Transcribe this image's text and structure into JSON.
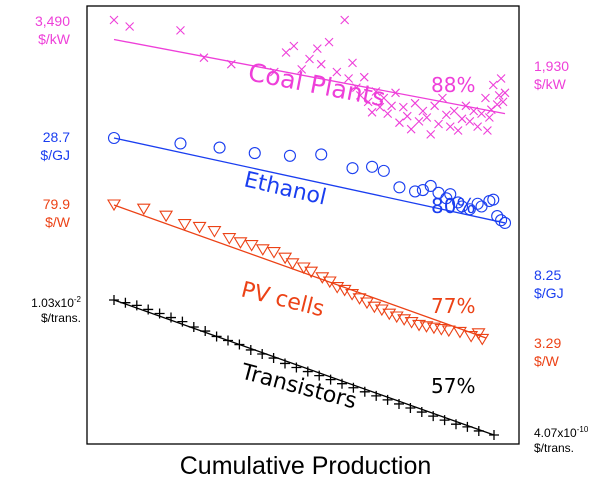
{
  "chart_data": {
    "type": "scatter",
    "title": "",
    "xlabel": "Cumulative Production",
    "ylabel": "",
    "grid": false,
    "legend": "none",
    "series": [
      {
        "name": "Coal Plants",
        "color": "#ee3fd9",
        "marker": "x",
        "learning_rate": "88%",
        "start_label": {
          "value": "3,490",
          "unit": "$/kW"
        },
        "end_label": {
          "value": "1,930",
          "unit": "$/kW"
        },
        "points": [
          [
            0.0,
            1.0
          ],
          [
            0.04,
            0.95
          ],
          [
            0.17,
            0.92
          ],
          [
            0.23,
            0.71
          ],
          [
            0.3,
            0.66
          ],
          [
            0.41,
            0.6
          ],
          [
            0.44,
            0.75
          ],
          [
            0.46,
            0.8
          ],
          [
            0.48,
            0.62
          ],
          [
            0.5,
            0.7
          ],
          [
            0.52,
            0.78
          ],
          [
            0.53,
            0.66
          ],
          [
            0.55,
            0.83
          ],
          [
            0.57,
            0.6
          ],
          [
            0.59,
            1.0
          ],
          [
            0.6,
            0.55
          ],
          [
            0.61,
            0.67
          ],
          [
            0.62,
            0.48
          ],
          [
            0.63,
            0.42
          ],
          [
            0.64,
            0.56
          ],
          [
            0.65,
            0.37
          ],
          [
            0.66,
            0.29
          ],
          [
            0.67,
            0.45
          ],
          [
            0.68,
            0.33
          ],
          [
            0.69,
            0.4
          ],
          [
            0.7,
            0.28
          ],
          [
            0.71,
            0.34
          ],
          [
            0.72,
            0.44
          ],
          [
            0.73,
            0.21
          ],
          [
            0.74,
            0.33
          ],
          [
            0.75,
            0.26
          ],
          [
            0.76,
            0.16
          ],
          [
            0.77,
            0.36
          ],
          [
            0.78,
            0.22
          ],
          [
            0.79,
            0.3
          ],
          [
            0.8,
            0.25
          ],
          [
            0.81,
            0.12
          ],
          [
            0.82,
            0.34
          ],
          [
            0.83,
            0.2
          ],
          [
            0.84,
            0.4
          ],
          [
            0.85,
            0.27
          ],
          [
            0.86,
            0.18
          ],
          [
            0.87,
            0.3
          ],
          [
            0.88,
            0.15
          ],
          [
            0.89,
            0.24
          ],
          [
            0.9,
            0.34
          ],
          [
            0.91,
            0.22
          ],
          [
            0.92,
            0.3
          ],
          [
            0.93,
            0.18
          ],
          [
            0.94,
            0.28
          ],
          [
            0.95,
            0.4
          ],
          [
            0.96,
            0.25
          ],
          [
            0.97,
            0.5
          ],
          [
            0.98,
            0.35
          ],
          [
            0.99,
            0.55
          ],
          [
            1.0,
            0.44
          ],
          [
            0.965,
            0.31
          ],
          [
            0.985,
            0.42
          ],
          [
            0.995,
            0.37
          ],
          [
            0.955,
            0.15
          ]
        ],
        "fit": [
          [
            0.0,
            0.85
          ],
          [
            1.0,
            0.28
          ]
        ]
      },
      {
        "name": "Ethanol",
        "color": "#1a3ef0",
        "marker": "o",
        "learning_rate": "80%",
        "start_label": {
          "value": "28.7",
          "unit": "$/GJ"
        },
        "end_label": {
          "value": "8.25",
          "unit": "$/GJ"
        },
        "points": [
          [
            0.0,
            1.0
          ],
          [
            0.17,
            0.96
          ],
          [
            0.27,
            0.93
          ],
          [
            0.36,
            0.89
          ],
          [
            0.45,
            0.87
          ],
          [
            0.53,
            0.88
          ],
          [
            0.61,
            0.78
          ],
          [
            0.66,
            0.79
          ],
          [
            0.69,
            0.76
          ],
          [
            0.73,
            0.64
          ],
          [
            0.77,
            0.61
          ],
          [
            0.79,
            0.62
          ],
          [
            0.81,
            0.65
          ],
          [
            0.83,
            0.6
          ],
          [
            0.85,
            0.56
          ],
          [
            0.86,
            0.59
          ],
          [
            0.88,
            0.53
          ],
          [
            0.89,
            0.5
          ],
          [
            0.91,
            0.48
          ],
          [
            0.93,
            0.52
          ],
          [
            0.94,
            0.5
          ],
          [
            0.96,
            0.54
          ],
          [
            0.97,
            0.55
          ],
          [
            0.98,
            0.43
          ],
          [
            0.99,
            0.4
          ],
          [
            1.0,
            0.38
          ]
        ],
        "fit": [
          [
            0.0,
            1.0
          ],
          [
            1.0,
            0.38
          ]
        ]
      },
      {
        "name": "PV cells",
        "color": "#ec4216",
        "marker": "v",
        "learning_rate": "77%",
        "start_label": {
          "value": "79.9",
          "unit": "$/W"
        },
        "end_label": {
          "value": "3.29",
          "unit": "$/W"
        },
        "points": [
          [
            0.0,
            1.0
          ],
          [
            0.08,
            0.97
          ],
          [
            0.14,
            0.92
          ],
          [
            0.19,
            0.86
          ],
          [
            0.23,
            0.84
          ],
          [
            0.27,
            0.81
          ],
          [
            0.31,
            0.76
          ],
          [
            0.34,
            0.73
          ],
          [
            0.37,
            0.71
          ],
          [
            0.4,
            0.68
          ],
          [
            0.43,
            0.66
          ],
          [
            0.46,
            0.62
          ],
          [
            0.48,
            0.58
          ],
          [
            0.51,
            0.55
          ],
          [
            0.53,
            0.52
          ],
          [
            0.56,
            0.48
          ],
          [
            0.58,
            0.45
          ],
          [
            0.6,
            0.41
          ],
          [
            0.62,
            0.39
          ],
          [
            0.64,
            0.36
          ],
          [
            0.66,
            0.33
          ],
          [
            0.68,
            0.3
          ],
          [
            0.7,
            0.27
          ],
          [
            0.72,
            0.25
          ],
          [
            0.74,
            0.22
          ],
          [
            0.76,
            0.2
          ],
          [
            0.78,
            0.18
          ],
          [
            0.8,
            0.16
          ],
          [
            0.82,
            0.14
          ],
          [
            0.84,
            0.13
          ],
          [
            0.86,
            0.12
          ],
          [
            0.88,
            0.11
          ],
          [
            0.9,
            0.1
          ],
          [
            0.93,
            0.09
          ],
          [
            0.96,
            0.06
          ],
          [
            0.99,
            0.04
          ],
          [
            0.98,
            0.08
          ]
        ],
        "fit": [
          [
            0.0,
            1.0
          ],
          [
            1.0,
            0.05
          ]
        ]
      },
      {
        "name": "Transistors",
        "color": "#000000",
        "marker": "+",
        "learning_rate": "57%",
        "start_label": {
          "value": "1.03x10",
          "exp": "-2",
          "unit": "$/trans."
        },
        "end_label": {
          "value": "4.07x10",
          "exp": "-10",
          "unit": "$/trans."
        },
        "points": [
          [
            0.0,
            1.0
          ],
          [
            0.03,
            0.98
          ],
          [
            0.06,
            0.96
          ],
          [
            0.09,
            0.93
          ],
          [
            0.12,
            0.9
          ],
          [
            0.15,
            0.87
          ],
          [
            0.18,
            0.84
          ],
          [
            0.21,
            0.8
          ],
          [
            0.24,
            0.77
          ],
          [
            0.27,
            0.73
          ],
          [
            0.3,
            0.7
          ],
          [
            0.33,
            0.67
          ],
          [
            0.36,
            0.63
          ],
          [
            0.39,
            0.6
          ],
          [
            0.42,
            0.57
          ],
          [
            0.45,
            0.53
          ],
          [
            0.48,
            0.5
          ],
          [
            0.51,
            0.47
          ],
          [
            0.54,
            0.44
          ],
          [
            0.57,
            0.41
          ],
          [
            0.6,
            0.38
          ],
          [
            0.63,
            0.35
          ],
          [
            0.66,
            0.32
          ],
          [
            0.69,
            0.29
          ],
          [
            0.72,
            0.26
          ],
          [
            0.75,
            0.23
          ],
          [
            0.78,
            0.2
          ],
          [
            0.81,
            0.17
          ],
          [
            0.84,
            0.14
          ],
          [
            0.87,
            0.11
          ],
          [
            0.9,
            0.08
          ],
          [
            0.93,
            0.06
          ],
          [
            0.96,
            0.03
          ],
          [
            1.0,
            0.0
          ]
        ],
        "fit": [
          [
            0.0,
            1.0
          ],
          [
            1.0,
            0.0
          ]
        ]
      }
    ]
  }
}
